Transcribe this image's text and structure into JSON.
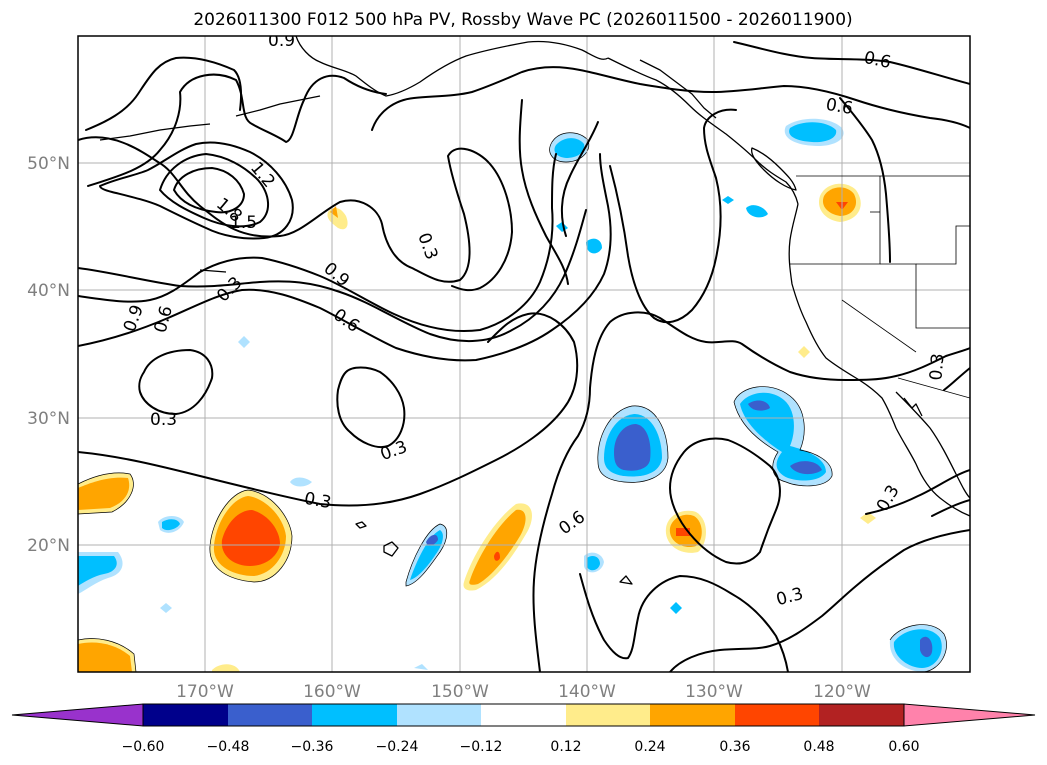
{
  "title": "2026011300 F012 500 hPa PV, Rossby Wave PC (2026011500 - 2026011900)",
  "axes": {
    "lon_ticks": [
      "170°W",
      "160°W",
      "150°W",
      "140°W",
      "130°W",
      "120°W"
    ],
    "lat_ticks": [
      "50°N",
      "40°N",
      "30°N",
      "20°N"
    ],
    "lon_range": [
      -180,
      -110
    ],
    "lat_range": [
      10,
      60
    ],
    "grid": true
  },
  "colorbar": {
    "ticks": [
      "−0.60",
      "−0.48",
      "−0.36",
      "−0.24",
      "−0.12",
      "0.12",
      "0.24",
      "0.36",
      "0.48",
      "0.60"
    ],
    "colors": [
      "#9932cc",
      "#00008b",
      "#3a5fcd",
      "#00bfff",
      "#b0e2ff",
      "#ffffff",
      "#ffec8b",
      "#ffa500",
      "#ff4500",
      "#b22222",
      "#ff82ab"
    ],
    "extend": "both"
  },
  "contour_labels": [
    "0.9",
    "0.6",
    "0.6",
    "1.2",
    "1.8",
    "1.5",
    "0.3",
    "0.9",
    "0.6",
    "0.3",
    "0.9",
    "0.6",
    "0.3",
    "0.3",
    "0.3",
    "0.6",
    "0.3",
    "0.3",
    "0.3"
  ],
  "chart_data": {
    "type": "heatmap",
    "title": "2026011300 F012 500 hPa PV, Rossby Wave PC (2026011500 - 2026011900)",
    "fields": [
      "500 hPa PV (contours)",
      "Rossby Wave PC (shaded)"
    ],
    "contour_levels": [
      0.3,
      0.6,
      0.9,
      1.2,
      1.5,
      1.8
    ],
    "shading_levels": [
      -0.6,
      -0.48,
      -0.36,
      -0.24,
      -0.12,
      0.12,
      0.24,
      0.36,
      0.48,
      0.6
    ],
    "xlim": [
      -180,
      -110
    ],
    "ylim": [
      10,
      60
    ]
  }
}
